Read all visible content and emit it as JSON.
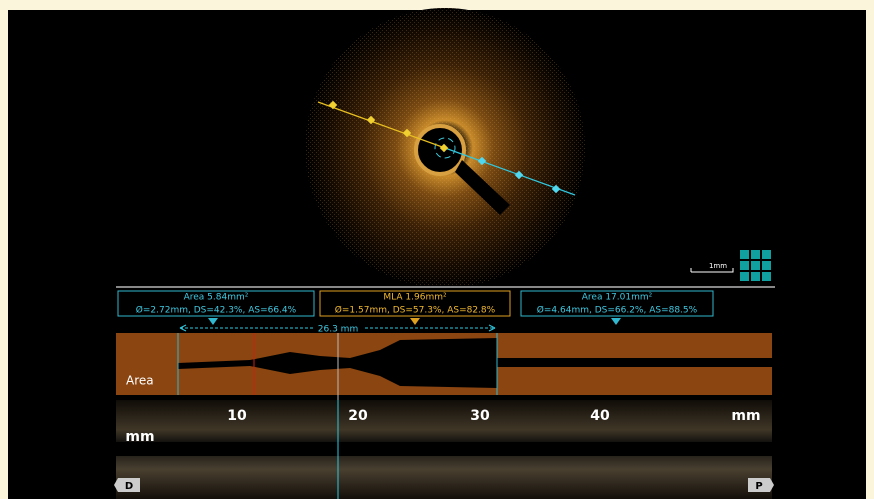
{
  "viewer": {
    "scale_bar": "1mm",
    "measurements": [
      {
        "title": "Area 5.84mm²",
        "detail": "Ø=2.72mm, DS=42.3%, AS=66.4%"
      },
      {
        "title": "MLA 1.96mm²",
        "detail": "Ø=1.57mm, DS=57.3%, AS=82.8%"
      },
      {
        "title": "Area 17.01mm²",
        "detail": "Ø=4.64mm, DS=66.2%, AS=88.5%"
      }
    ],
    "length": "26.3 mm",
    "profile_label": "Area",
    "axis_ticks": [
      "10",
      "20",
      "30",
      "40"
    ],
    "axis_unit": "mm",
    "side_unit": "mm",
    "nav": {
      "distal": "D",
      "proximal": "P"
    }
  }
}
